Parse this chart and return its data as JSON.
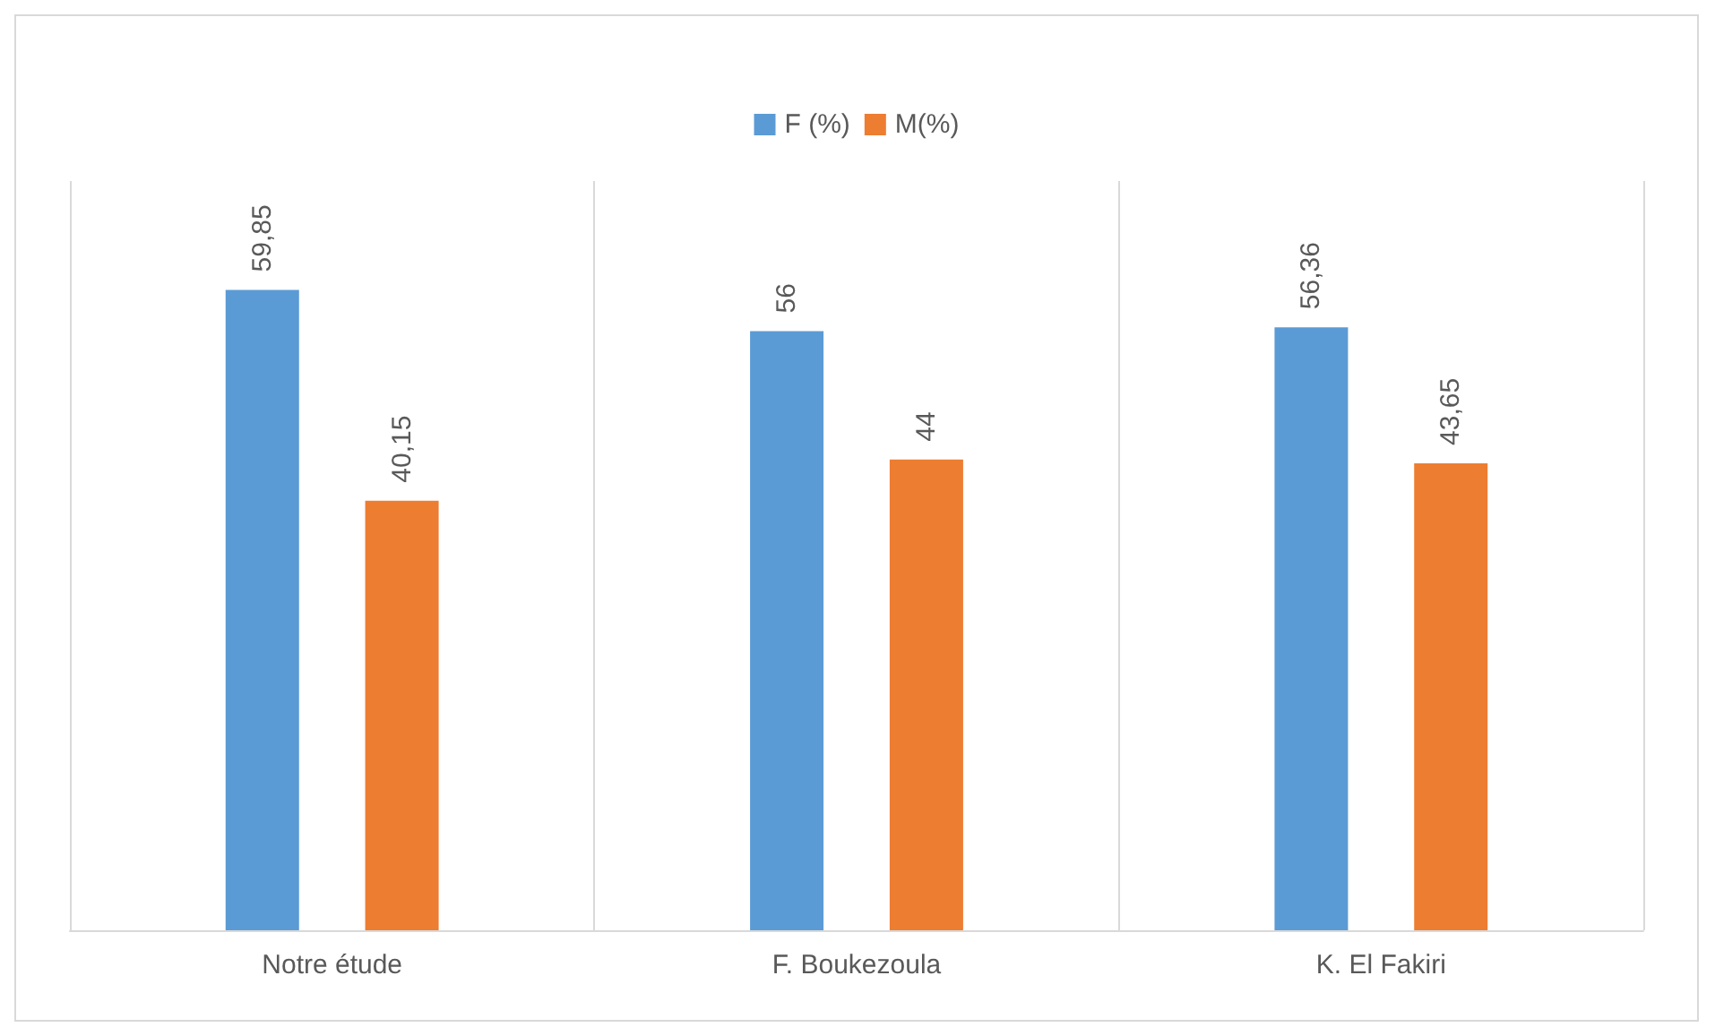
{
  "chart_data": {
    "type": "bar",
    "categories": [
      "Notre étude",
      "F. Boukezoula",
      "K. El Fakiri"
    ],
    "series": [
      {
        "name": "F (%)",
        "color": "#5b9bd5",
        "values": [
          59.85,
          56,
          56.36
        ],
        "value_labels": [
          "59,85",
          "56",
          "56,36"
        ]
      },
      {
        "name": "M(%)",
        "color": "#ed7d31",
        "values": [
          40.15,
          44,
          43.65
        ],
        "value_labels": [
          "40,15",
          "44",
          "43,65"
        ]
      }
    ],
    "legend": "top",
    "grid": "x"
  }
}
